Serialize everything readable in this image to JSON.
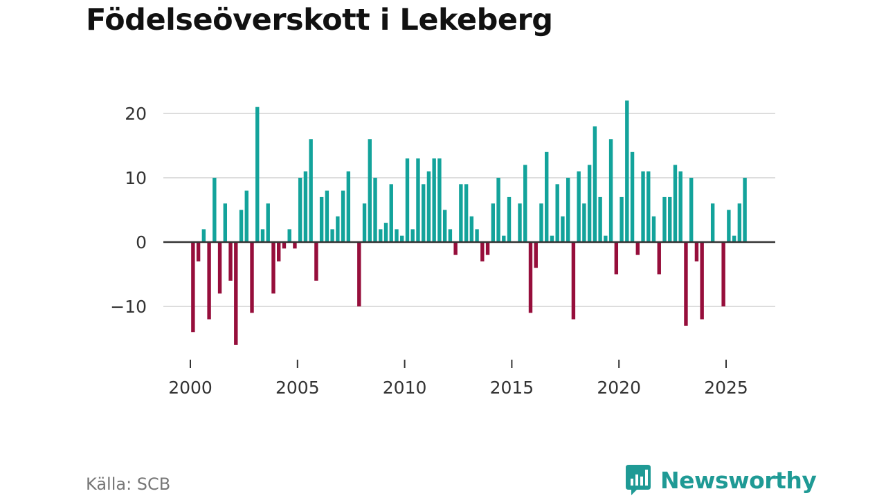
{
  "title": "Födelseöverskott i Lekeberg",
  "source": "Källa: SCB",
  "brand": "Newsworthy",
  "colors": {
    "positive": "#13a39b",
    "negative": "#960e3b",
    "grid": "#dddddd",
    "zero": "#333333"
  },
  "chart_data": {
    "type": "bar",
    "title": "Födelseöverskott i Lekeberg",
    "xlabel": "",
    "ylabel": "",
    "x_ticks": [
      2000,
      2005,
      2010,
      2015,
      2020,
      2025
    ],
    "y_ticks": [
      -10,
      0,
      10,
      20
    ],
    "y_tick_labels": [
      "−10",
      "0",
      "10",
      "20"
    ],
    "ylim": [
      -18,
      22
    ],
    "start_year": 2000,
    "period": "quarter",
    "values": [
      -14,
      -3,
      2,
      -12,
      10,
      -8,
      6,
      -6,
      -16,
      5,
      8,
      -11,
      21,
      2,
      6,
      -8,
      -3,
      -1,
      2,
      -1,
      10,
      11,
      16,
      -6,
      7,
      8,
      2,
      4,
      8,
      11,
      0,
      -10,
      6,
      16,
      10,
      2,
      3,
      9,
      2,
      1,
      13,
      2,
      13,
      9,
      11,
      13,
      13,
      5,
      2,
      -2,
      9,
      9,
      4,
      2,
      -3,
      -2,
      6,
      10,
      1,
      7,
      0,
      6,
      12,
      -11,
      -4,
      6,
      14,
      1,
      9,
      4,
      10,
      -12,
      11,
      6,
      12,
      18,
      7,
      1,
      16,
      -5,
      7,
      22,
      14,
      -2,
      11,
      11,
      4,
      -5,
      7,
      7,
      12,
      11,
      -13,
      10,
      -3,
      -12,
      0,
      6,
      0,
      -10,
      5,
      1,
      6,
      10
    ]
  }
}
